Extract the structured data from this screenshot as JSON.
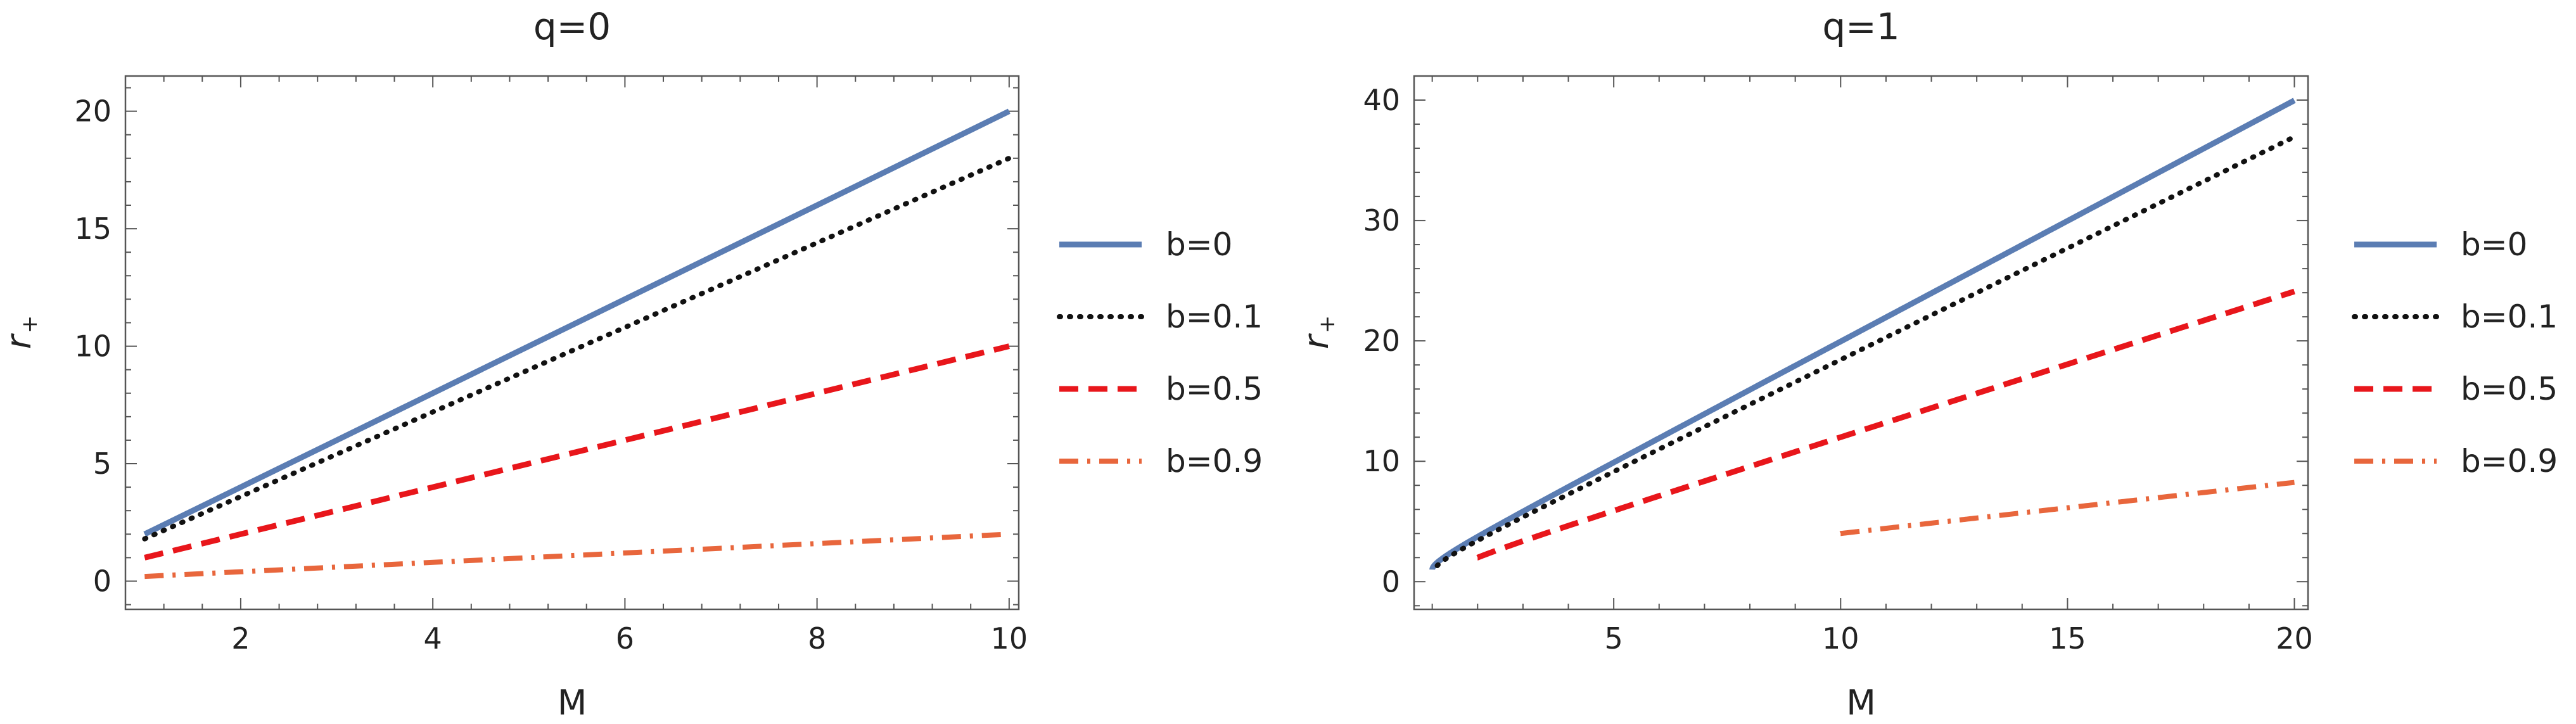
{
  "chart_data": [
    {
      "type": "line",
      "title": "q=0",
      "xlabel": "M",
      "ylabel": "r",
      "ylabel_sub": "+",
      "xlim": [
        0.8,
        10.1
      ],
      "ylim": [
        -1.2,
        21.5
      ],
      "xticks": [
        2,
        4,
        6,
        8,
        10
      ],
      "yticks": [
        0,
        5,
        10,
        15,
        20
      ],
      "grid": false,
      "legend_position": "right",
      "series": [
        {
          "name": "b=0",
          "color": "#5b7db3",
          "dash": "solid",
          "x": [
            1,
            10
          ],
          "y": [
            2,
            20
          ]
        },
        {
          "name": "b=0.1",
          "color": "#111111",
          "dash": "dotted",
          "x": [
            1,
            10
          ],
          "y": [
            1.8,
            18
          ]
        },
        {
          "name": "b=0.5",
          "color": "#e8161b",
          "dash": "dashed",
          "x": [
            1,
            10
          ],
          "y": [
            1,
            10
          ]
        },
        {
          "name": "b=0.9",
          "color": "#e8663c",
          "dash": "dashdot",
          "x": [
            1,
            10
          ],
          "y": [
            0.2,
            2
          ]
        }
      ]
    },
    {
      "type": "line",
      "title": "q=1",
      "xlabel": "M",
      "ylabel": "r",
      "ylabel_sub": "+",
      "xlim": [
        0.6,
        20.3
      ],
      "ylim": [
        -2.3,
        42
      ],
      "xticks": [
        5,
        10,
        15,
        20
      ],
      "yticks": [
        0,
        10,
        20,
        30,
        40
      ],
      "grid": false,
      "legend_position": "right",
      "series": [
        {
          "name": "b=0",
          "color": "#5b7db3",
          "dash": "solid",
          "fn": "r0",
          "b": 0,
          "xmin": 1,
          "xmax": 20
        },
        {
          "name": "b=0.1",
          "color": "#111111",
          "dash": "dotted",
          "fn": "rb",
          "b": 0.1,
          "xmin": 1.11,
          "xmax": 20
        },
        {
          "name": "b=0.5",
          "color": "#e8161b",
          "dash": "dashed",
          "fn": "rb",
          "b": 0.5,
          "xmin": 2,
          "xmax": 20
        },
        {
          "name": "b=0.9",
          "color": "#e8663c",
          "dash": "dashdot",
          "fn": "rb",
          "b": 0.9,
          "xmin": 10,
          "xmax": 20
        }
      ]
    }
  ]
}
